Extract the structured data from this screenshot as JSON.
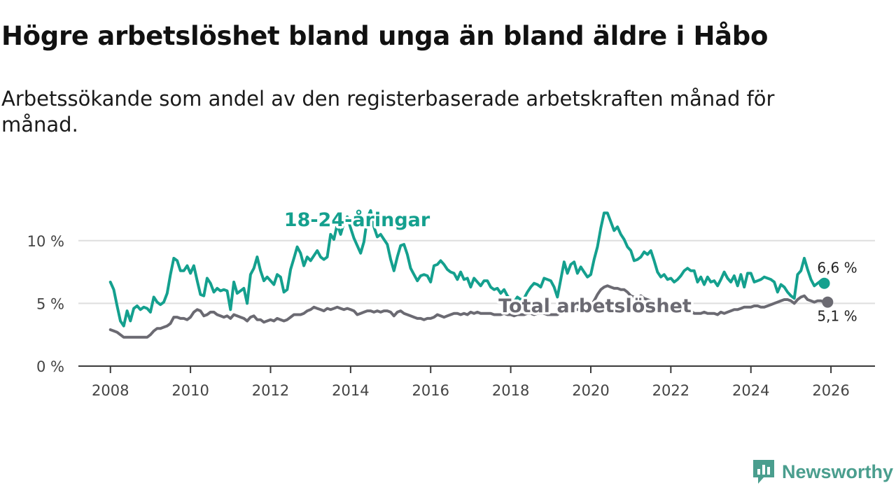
{
  "title": "Högre arbetslöshet bland unga än bland äldre i Håbo",
  "subtitle": "Arbetssökande som andel av den registerbaserade arbetskraften månad för månad.",
  "brand": {
    "name": "Newsworthy",
    "icon": "newsworthy-logo-icon",
    "color": "#4a9e8e"
  },
  "chart_data": {
    "type": "line",
    "x_start": 2008.0,
    "x_step_months": 1,
    "xlim": [
      2007.2,
      2027.1
    ],
    "ylim": [
      0,
      13
    ],
    "x_ticks": [
      2008,
      2010,
      2012,
      2014,
      2016,
      2018,
      2020,
      2022,
      2024,
      2026
    ],
    "y_ticks": [
      {
        "value": 0,
        "label": "0 %"
      },
      {
        "value": 5,
        "label": "5 %"
      },
      {
        "value": 10,
        "label": "10 %"
      }
    ],
    "grid": true,
    "series": [
      {
        "name": "18-24-åringar",
        "color": "#14a08e",
        "end_label": "6,6 %",
        "values": [
          6.7,
          6.1,
          4.8,
          3.6,
          3.2,
          4.4,
          3.6,
          4.6,
          4.8,
          4.5,
          4.7,
          4.6,
          4.3,
          5.5,
          5.1,
          4.9,
          5.1,
          5.8,
          7.3,
          8.6,
          8.4,
          7.6,
          7.6,
          8.0,
          7.4,
          8.0,
          6.8,
          5.7,
          5.6,
          7.0,
          6.6,
          5.9,
          6.2,
          6.0,
          6.1,
          6.0,
          4.5,
          6.7,
          5.8,
          6.0,
          6.2,
          5.0,
          7.3,
          7.8,
          8.7,
          7.6,
          6.8,
          7.1,
          6.8,
          6.5,
          7.3,
          7.1,
          5.9,
          6.1,
          7.7,
          8.6,
          9.5,
          9.0,
          8.0,
          8.7,
          8.4,
          8.8,
          9.2,
          8.7,
          8.5,
          8.7,
          10.5,
          10.1,
          11.3,
          10.5,
          11.4,
          11.9,
          11.0,
          10.2,
          9.6,
          9.0,
          9.9,
          11.8,
          12.4,
          11.1,
          10.3,
          10.5,
          10.1,
          9.7,
          8.5,
          7.6,
          8.7,
          9.6,
          9.7,
          8.9,
          7.8,
          7.3,
          6.8,
          7.2,
          7.3,
          7.2,
          6.7,
          8.0,
          8.1,
          8.4,
          8.1,
          7.7,
          7.5,
          7.4,
          6.9,
          7.5,
          6.9,
          7.0,
          6.3,
          7.0,
          6.7,
          6.4,
          6.8,
          6.8,
          6.3,
          6.1,
          6.2,
          5.8,
          6.1,
          5.6,
          5.3,
          5.1,
          5.5,
          5.3,
          5.4,
          5.9,
          6.3,
          6.6,
          6.5,
          6.3,
          7.0,
          6.9,
          6.8,
          6.3,
          5.5,
          6.9,
          8.3,
          7.4,
          8.1,
          8.3,
          7.4,
          7.9,
          7.5,
          7.1,
          7.3,
          8.5,
          9.5,
          11.0,
          12.2,
          12.2,
          11.5,
          10.8,
          11.1,
          10.5,
          10.1,
          9.5,
          9.2,
          8.4,
          8.5,
          8.7,
          9.1,
          8.9,
          9.2,
          8.4,
          7.5,
          7.1,
          7.3,
          6.9,
          7.0,
          6.7,
          6.9,
          7.2,
          7.6,
          7.8,
          7.6,
          7.6,
          6.7,
          7.1,
          6.5,
          7.1,
          6.7,
          6.8,
          6.4,
          6.9,
          7.5,
          7.0,
          6.7,
          7.2,
          6.4,
          7.3,
          6.3,
          7.4,
          7.4,
          6.7,
          6.8,
          6.9,
          7.1,
          7.0,
          6.9,
          6.7,
          5.9,
          6.5,
          6.3,
          5.9,
          5.6,
          5.4,
          7.3,
          7.6,
          8.6,
          7.7,
          6.9,
          6.4,
          6.6,
          6.8,
          6.6
        ]
      },
      {
        "name": "Total arbetslöshet",
        "color": "#6b6a72",
        "end_label": "5,1 %",
        "values": [
          2.9,
          2.8,
          2.7,
          2.5,
          2.3,
          2.3,
          2.3,
          2.3,
          2.3,
          2.3,
          2.3,
          2.3,
          2.5,
          2.8,
          3.0,
          3.0,
          3.1,
          3.2,
          3.4,
          3.9,
          3.9,
          3.8,
          3.8,
          3.7,
          3.9,
          4.3,
          4.5,
          4.4,
          4.0,
          4.1,
          4.3,
          4.3,
          4.1,
          4.0,
          3.9,
          4.0,
          3.8,
          4.1,
          4.0,
          3.9,
          3.8,
          3.6,
          3.9,
          4.0,
          3.7,
          3.7,
          3.5,
          3.6,
          3.7,
          3.6,
          3.8,
          3.7,
          3.6,
          3.7,
          3.9,
          4.1,
          4.1,
          4.1,
          4.2,
          4.4,
          4.5,
          4.7,
          4.6,
          4.5,
          4.4,
          4.6,
          4.5,
          4.6,
          4.7,
          4.6,
          4.5,
          4.6,
          4.5,
          4.4,
          4.1,
          4.2,
          4.3,
          4.4,
          4.4,
          4.3,
          4.4,
          4.3,
          4.4,
          4.4,
          4.3,
          4.0,
          4.3,
          4.4,
          4.2,
          4.1,
          4.0,
          3.9,
          3.8,
          3.8,
          3.7,
          3.8,
          3.8,
          3.9,
          4.1,
          4.0,
          3.9,
          4.0,
          4.1,
          4.2,
          4.2,
          4.1,
          4.2,
          4.1,
          4.3,
          4.2,
          4.3,
          4.2,
          4.2,
          4.2,
          4.2,
          4.1,
          4.1,
          4.1,
          4.2,
          4.1,
          4.1,
          4.0,
          4.1,
          4.1,
          4.1,
          4.2,
          4.2,
          4.1,
          4.2,
          4.2,
          4.2,
          4.1,
          4.1,
          4.1,
          4.1,
          4.3,
          4.3,
          4.4,
          4.4,
          4.5,
          4.5,
          4.6,
          4.6,
          4.6,
          4.8,
          5.2,
          5.7,
          6.1,
          6.3,
          6.4,
          6.3,
          6.2,
          6.2,
          6.1,
          6.1,
          5.9,
          5.6,
          5.5,
          5.4,
          5.6,
          5.4,
          5.3,
          5.2,
          5.1,
          5.0,
          4.9,
          4.9,
          4.8,
          4.8,
          4.7,
          4.7,
          4.7,
          4.6,
          4.5,
          4.4,
          4.2,
          4.2,
          4.2,
          4.3,
          4.2,
          4.2,
          4.2,
          4.1,
          4.3,
          4.2,
          4.3,
          4.4,
          4.5,
          4.5,
          4.6,
          4.7,
          4.7,
          4.7,
          4.8,
          4.8,
          4.7,
          4.7,
          4.8,
          4.9,
          5.0,
          5.1,
          5.2,
          5.3,
          5.3,
          5.2,
          5.0,
          5.3,
          5.5,
          5.6,
          5.3,
          5.2,
          5.1,
          5.2,
          5.2,
          5.1,
          5.1
        ]
      }
    ]
  }
}
